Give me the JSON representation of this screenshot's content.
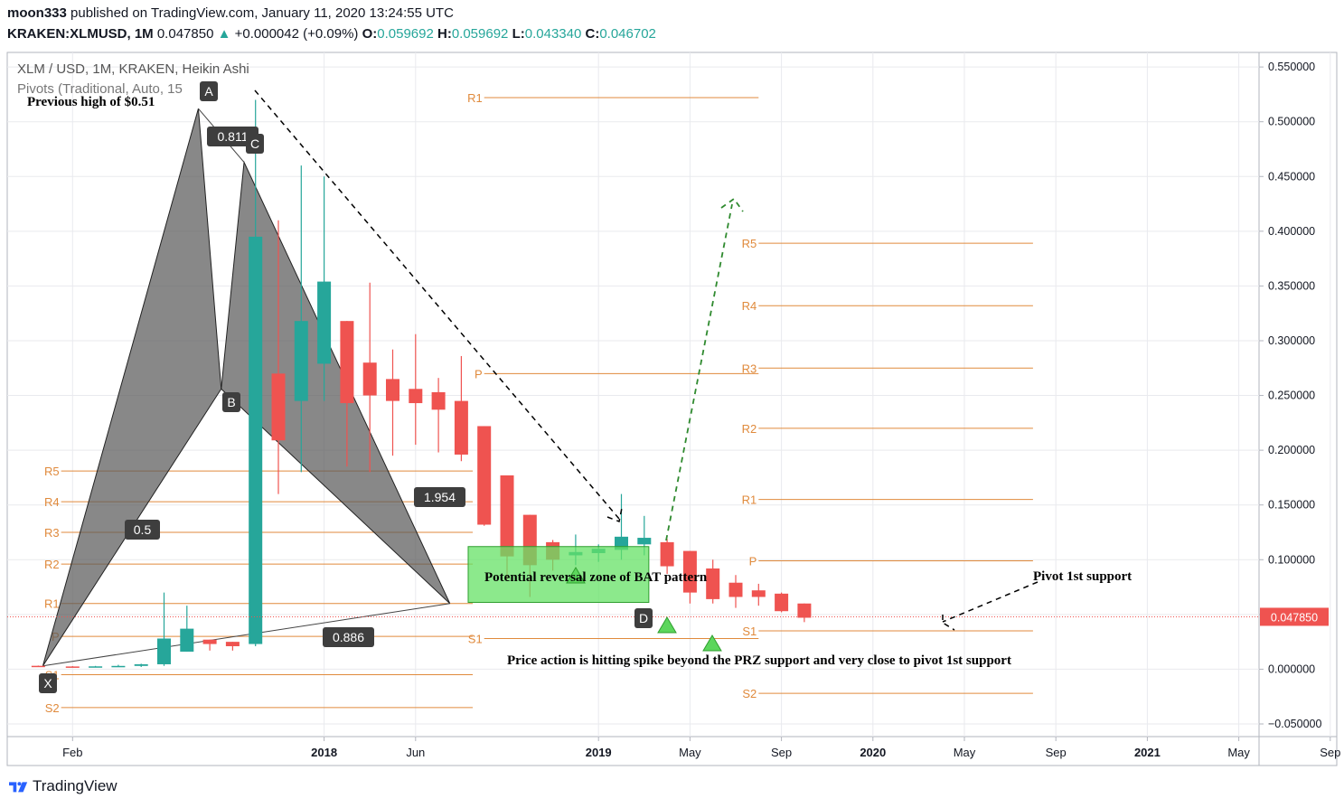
{
  "header": {
    "author": "moon333",
    "published_text": "published on TradingView.com, January 11, 2020 13:24:55 UTC",
    "symbol": "KRAKEN:XLMUSD, 1M",
    "last": "0.047850",
    "change": "+0.000042 (+0.09%)",
    "o_label": "O:",
    "o": "0.059692",
    "h_label": "H:",
    "h": "0.059692",
    "l_label": "L:",
    "l": "0.043340",
    "c_label": "C:",
    "c": "0.046702"
  },
  "legend": {
    "title": "XLM / USD, 1M, KRAKEN, Heikin Ashi",
    "pivots": "Pivots (Traditional, Auto, 15"
  },
  "annotations": {
    "previous_high": "Previous high of $0.51",
    "przone": "Potential reversal zone of BAT pattern",
    "pivot_support": "Pivot 1st support",
    "price_action": "Price action is hitting spike beyond the PRZ support and very close to pivot 1st support",
    "ratio_xb": "0.5",
    "ratio_ac": "0.811",
    "ratio_bd": "1.954",
    "ratio_xd": "0.886",
    "point_x": "X",
    "point_a": "A",
    "point_b": "B",
    "point_c": "C",
    "point_d": "D"
  },
  "last_price_tag": "0.047850",
  "footer": {
    "brand": "TradingView"
  },
  "colors": {
    "up": "#26a69a",
    "down": "#ef5350",
    "pivot": "#e08a3c",
    "pattern_fill": "#5a5a5a",
    "zone_fill": "#66e266",
    "grid": "#e9eaee"
  },
  "chart_data": {
    "type": "candlestick",
    "title": "XLM / USD, 1M, KRAKEN, Heikin Ashi",
    "ylim": [
      -0.05,
      0.56
    ],
    "y_ticks": [
      "0.550000",
      "0.500000",
      "0.450000",
      "0.400000",
      "0.350000",
      "0.300000",
      "0.250000",
      "0.200000",
      "0.150000",
      "0.100000",
      "0.050000",
      "0.000000",
      "−0.050000"
    ],
    "x_ticks": [
      {
        "label": "Feb",
        "bold": false,
        "m": 1
      },
      {
        "label": "2018",
        "bold": true,
        "m": 12
      },
      {
        "label": "Jun",
        "bold": false,
        "m": 16
      },
      {
        "label": "2019",
        "bold": true,
        "m": 24
      },
      {
        "label": "May",
        "bold": false,
        "m": 28
      },
      {
        "label": "Sep",
        "bold": false,
        "m": 32
      },
      {
        "label": "2020",
        "bold": true,
        "m": 36
      },
      {
        "label": "May",
        "bold": false,
        "m": 40
      },
      {
        "label": "Sep",
        "bold": false,
        "m": 44
      },
      {
        "label": "2021",
        "bold": true,
        "m": 48
      },
      {
        "label": "May",
        "bold": false,
        "m": 52
      },
      {
        "label": "Sep",
        "bold": false,
        "m": 56
      }
    ],
    "candles": [
      {
        "m": -0.5,
        "o": 0.0031,
        "h": 0.0033,
        "l": 0.0021,
        "c": 0.0025
      },
      {
        "m": 1,
        "o": 0.0025,
        "h": 0.0028,
        "l": 0.0022,
        "c": 0.0024
      },
      {
        "m": 2,
        "o": 0.0024,
        "h": 0.003,
        "l": 0.0022,
        "c": 0.0026
      },
      {
        "m": 3,
        "o": 0.0026,
        "h": 0.004,
        "l": 0.0022,
        "c": 0.003
      },
      {
        "m": 4,
        "o": 0.003,
        "h": 0.005,
        "l": 0.002,
        "c": 0.0045
      },
      {
        "m": 5,
        "o": 0.0045,
        "h": 0.07,
        "l": 0.003,
        "c": 0.028
      },
      {
        "m": 6,
        "o": 0.016,
        "h": 0.058,
        "l": 0.016,
        "c": 0.037
      },
      {
        "m": 7,
        "o": 0.027,
        "h": 0.027,
        "l": 0.017,
        "c": 0.023
      },
      {
        "m": 8,
        "o": 0.025,
        "h": 0.025,
        "l": 0.017,
        "c": 0.021
      },
      {
        "m": 9,
        "o": 0.023,
        "h": 0.52,
        "l": 0.021,
        "c": 0.395
      },
      {
        "m": 10,
        "o": 0.27,
        "h": 0.41,
        "l": 0.16,
        "c": 0.209
      },
      {
        "m": 11,
        "o": 0.245,
        "h": 0.46,
        "l": 0.18,
        "c": 0.318
      },
      {
        "m": 12,
        "o": 0.279,
        "h": 0.45,
        "l": 0.245,
        "c": 0.354
      },
      {
        "m": 13,
        "o": 0.318,
        "h": 0.318,
        "l": 0.185,
        "c": 0.243
      },
      {
        "m": 14,
        "o": 0.28,
        "h": 0.353,
        "l": 0.18,
        "c": 0.25
      },
      {
        "m": 15,
        "o": 0.265,
        "h": 0.292,
        "l": 0.195,
        "c": 0.245
      },
      {
        "m": 16,
        "o": 0.256,
        "h": 0.306,
        "l": 0.205,
        "c": 0.243
      },
      {
        "m": 17,
        "o": 0.253,
        "h": 0.266,
        "l": 0.198,
        "c": 0.237
      },
      {
        "m": 18,
        "o": 0.245,
        "h": 0.286,
        "l": 0.19,
        "c": 0.196
      },
      {
        "m": 19,
        "o": 0.222,
        "h": 0.222,
        "l": 0.131,
        "c": 0.132
      },
      {
        "m": 20,
        "o": 0.177,
        "h": 0.177,
        "l": 0.082,
        "c": 0.103
      },
      {
        "m": 21,
        "o": 0.141,
        "h": 0.141,
        "l": 0.066,
        "c": 0.095
      },
      {
        "m": 22,
        "o": 0.116,
        "h": 0.118,
        "l": 0.09,
        "c": 0.1
      },
      {
        "m": 23,
        "o": 0.104,
        "h": 0.123,
        "l": 0.095,
        "c": 0.107
      },
      {
        "m": 24,
        "o": 0.106,
        "h": 0.114,
        "l": 0.098,
        "c": 0.11
      },
      {
        "m": 25,
        "o": 0.109,
        "h": 0.16,
        "l": 0.1,
        "c": 0.121
      },
      {
        "m": 26,
        "o": 0.114,
        "h": 0.14,
        "l": 0.104,
        "c": 0.12
      },
      {
        "m": 27,
        "o": 0.116,
        "h": 0.119,
        "l": 0.087,
        "c": 0.094
      },
      {
        "m": 28,
        "o": 0.108,
        "h": 0.108,
        "l": 0.06,
        "c": 0.07
      },
      {
        "m": 29,
        "o": 0.092,
        "h": 0.1,
        "l": 0.06,
        "c": 0.064
      },
      {
        "m": 30,
        "o": 0.079,
        "h": 0.086,
        "l": 0.056,
        "c": 0.066
      },
      {
        "m": 31,
        "o": 0.072,
        "h": 0.078,
        "l": 0.058,
        "c": 0.066
      },
      {
        "m": 32,
        "o": 0.069,
        "h": 0.07,
        "l": 0.052,
        "c": 0.053
      },
      {
        "m": 33,
        "o": 0.06,
        "h": 0.06,
        "l": 0.043,
        "c": 0.047
      }
    ],
    "pivot_sets": [
      {
        "from": 0.5,
        "to": 18.5,
        "levels": [
          [
            "R5",
            0.181
          ],
          [
            "R4",
            0.153
          ],
          [
            "R3",
            0.125
          ],
          [
            "R2",
            0.096
          ],
          [
            "R1",
            0.06
          ],
          [
            "P",
            0.03
          ],
          [
            "S1",
            -0.005
          ],
          [
            "S2",
            -0.035
          ]
        ]
      },
      {
        "from": 19,
        "to": 31,
        "levels": [
          [
            "R1",
            0.522
          ],
          [
            "P",
            0.27
          ],
          [
            "S1",
            0.028
          ]
        ]
      },
      {
        "from": 31,
        "to": 43,
        "levels": [
          [
            "R5",
            0.389
          ],
          [
            "R4",
            0.332
          ],
          [
            "R3",
            0.275
          ],
          [
            "R2",
            0.22
          ],
          [
            "R1",
            0.155
          ],
          [
            "P",
            0.099
          ],
          [
            "S1",
            0.035
          ],
          [
            "S2",
            -0.022
          ]
        ]
      }
    ],
    "bat_pattern": {
      "X": {
        "m": -0.3,
        "y": 0.003
      },
      "A": {
        "m": 6.5,
        "y": 0.512
      },
      "B": {
        "m": 7.5,
        "y": 0.256
      },
      "C": {
        "m": 8.5,
        "y": 0.463
      },
      "D": {
        "m": 17.5,
        "y": 0.06
      }
    },
    "pr_zone": {
      "from": 18.3,
      "to": 26.2,
      "ymin": 0.061,
      "ymax": 0.112
    },
    "last_price": 0.04785
  }
}
